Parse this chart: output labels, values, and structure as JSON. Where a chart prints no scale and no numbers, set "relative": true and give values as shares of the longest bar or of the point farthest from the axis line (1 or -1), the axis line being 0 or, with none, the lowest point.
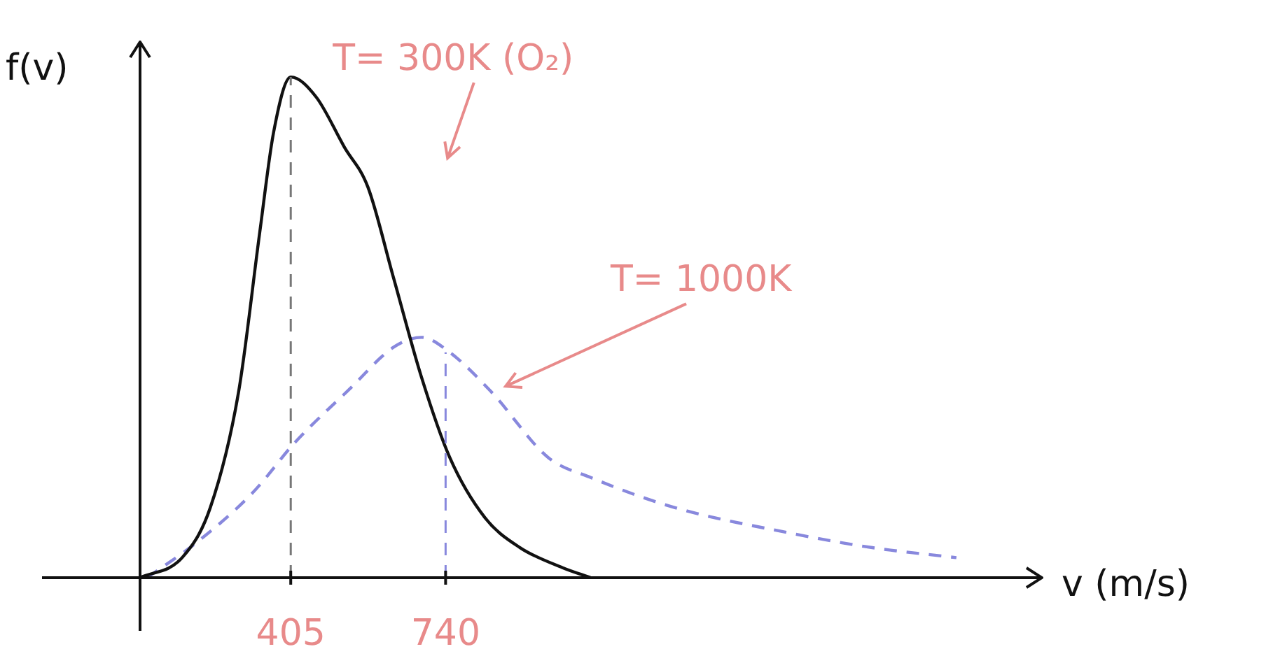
{
  "chart_data": {
    "type": "line",
    "relative": true,
    "xlabel": "v (m/s)",
    "ylabel": "f(v)",
    "xlim": [
      79,
      2030
    ],
    "xticks": [
      405,
      740
    ],
    "legend": false,
    "ref_lines": [
      {
        "axis": "x",
        "value": 405,
        "color": "#777777",
        "line_style": "dashed"
      },
      {
        "axis": "x",
        "value": 740,
        "color": "#8888dd",
        "line_style": "dashed"
      }
    ],
    "series": [
      {
        "name": "T= 300K (O₂)",
        "color": "#111111",
        "line_style": "solid",
        "x": [
          79,
          170,
          231,
          292,
          338,
          368,
          405,
          460,
          521,
          572,
          627,
          688,
          749,
          825,
          901,
          993,
          1054
        ],
        "values": [
          0,
          0.04,
          0.14,
          0.37,
          0.69,
          0.89,
          1,
          0.96,
          0.86,
          0.78,
          0.6,
          0.4,
          0.24,
          0.12,
          0.06,
          0.02,
          0
        ]
      },
      {
        "name": "T= 1000K",
        "color": "#8888dd",
        "line_style": "dashed",
        "x": [
          94,
          201,
          323,
          414,
          536,
          627,
          688,
          749,
          840,
          962,
          1054,
          1236,
          1480,
          1663,
          1845
        ],
        "values": [
          0,
          0.07,
          0.17,
          0.27,
          0.38,
          0.46,
          0.48,
          0.45,
          0.37,
          0.24,
          0.2,
          0.14,
          0.09,
          0.06,
          0.04
        ]
      }
    ]
  }
}
